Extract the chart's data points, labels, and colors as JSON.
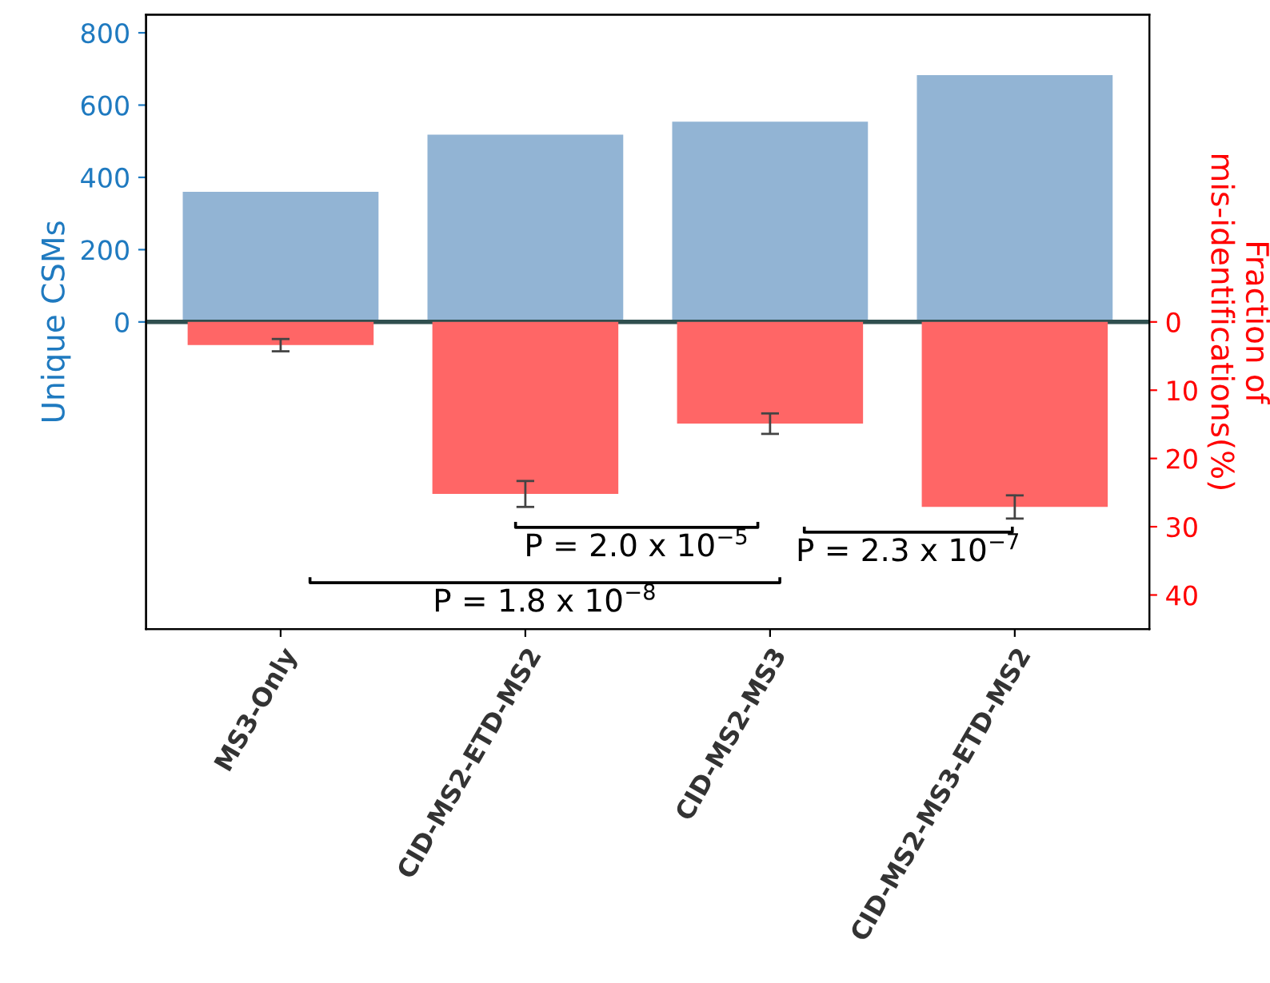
{
  "chart_data": {
    "type": "bar",
    "categories": [
      "MS3-Only",
      "CID-MS2-ETD-MS2",
      "CID-MS2-MS3",
      "CID-MS2-MS3-ETD-MS2"
    ],
    "ylabel": "Unique CSMs",
    "y2label": "Fraction of\nmis-identifications(%)",
    "series": [
      {
        "color": "#92b4d4",
        "values": [
          360,
          518,
          554,
          683
        ]
      },
      {
        "color": "#ff6666",
        "axis": "y2",
        "values": [
          3.4,
          25.2,
          14.9,
          27.1
        ],
        "errors": [
          0.9,
          1.9,
          1.5,
          1.7
        ]
      }
    ],
    "ylim": [
      -850,
      850
    ],
    "yticks": [
      0,
      200,
      400,
      600,
      800
    ],
    "y2lim": [
      45,
      -45
    ],
    "y2ticks": [
      0,
      10,
      20,
      30,
      40
    ],
    "ref_lines": [
      {
        "axis": "y",
        "value": 0,
        "color": "#2f4f4f"
      }
    ],
    "annotations": [
      "P = 2.0 x 10$^{−5}$",
      "P = 2.3 x 10$^{−7}$",
      "P = 1.8 x 10$^{−8}$"
    ],
    "grid": false,
    "legend": false
  }
}
